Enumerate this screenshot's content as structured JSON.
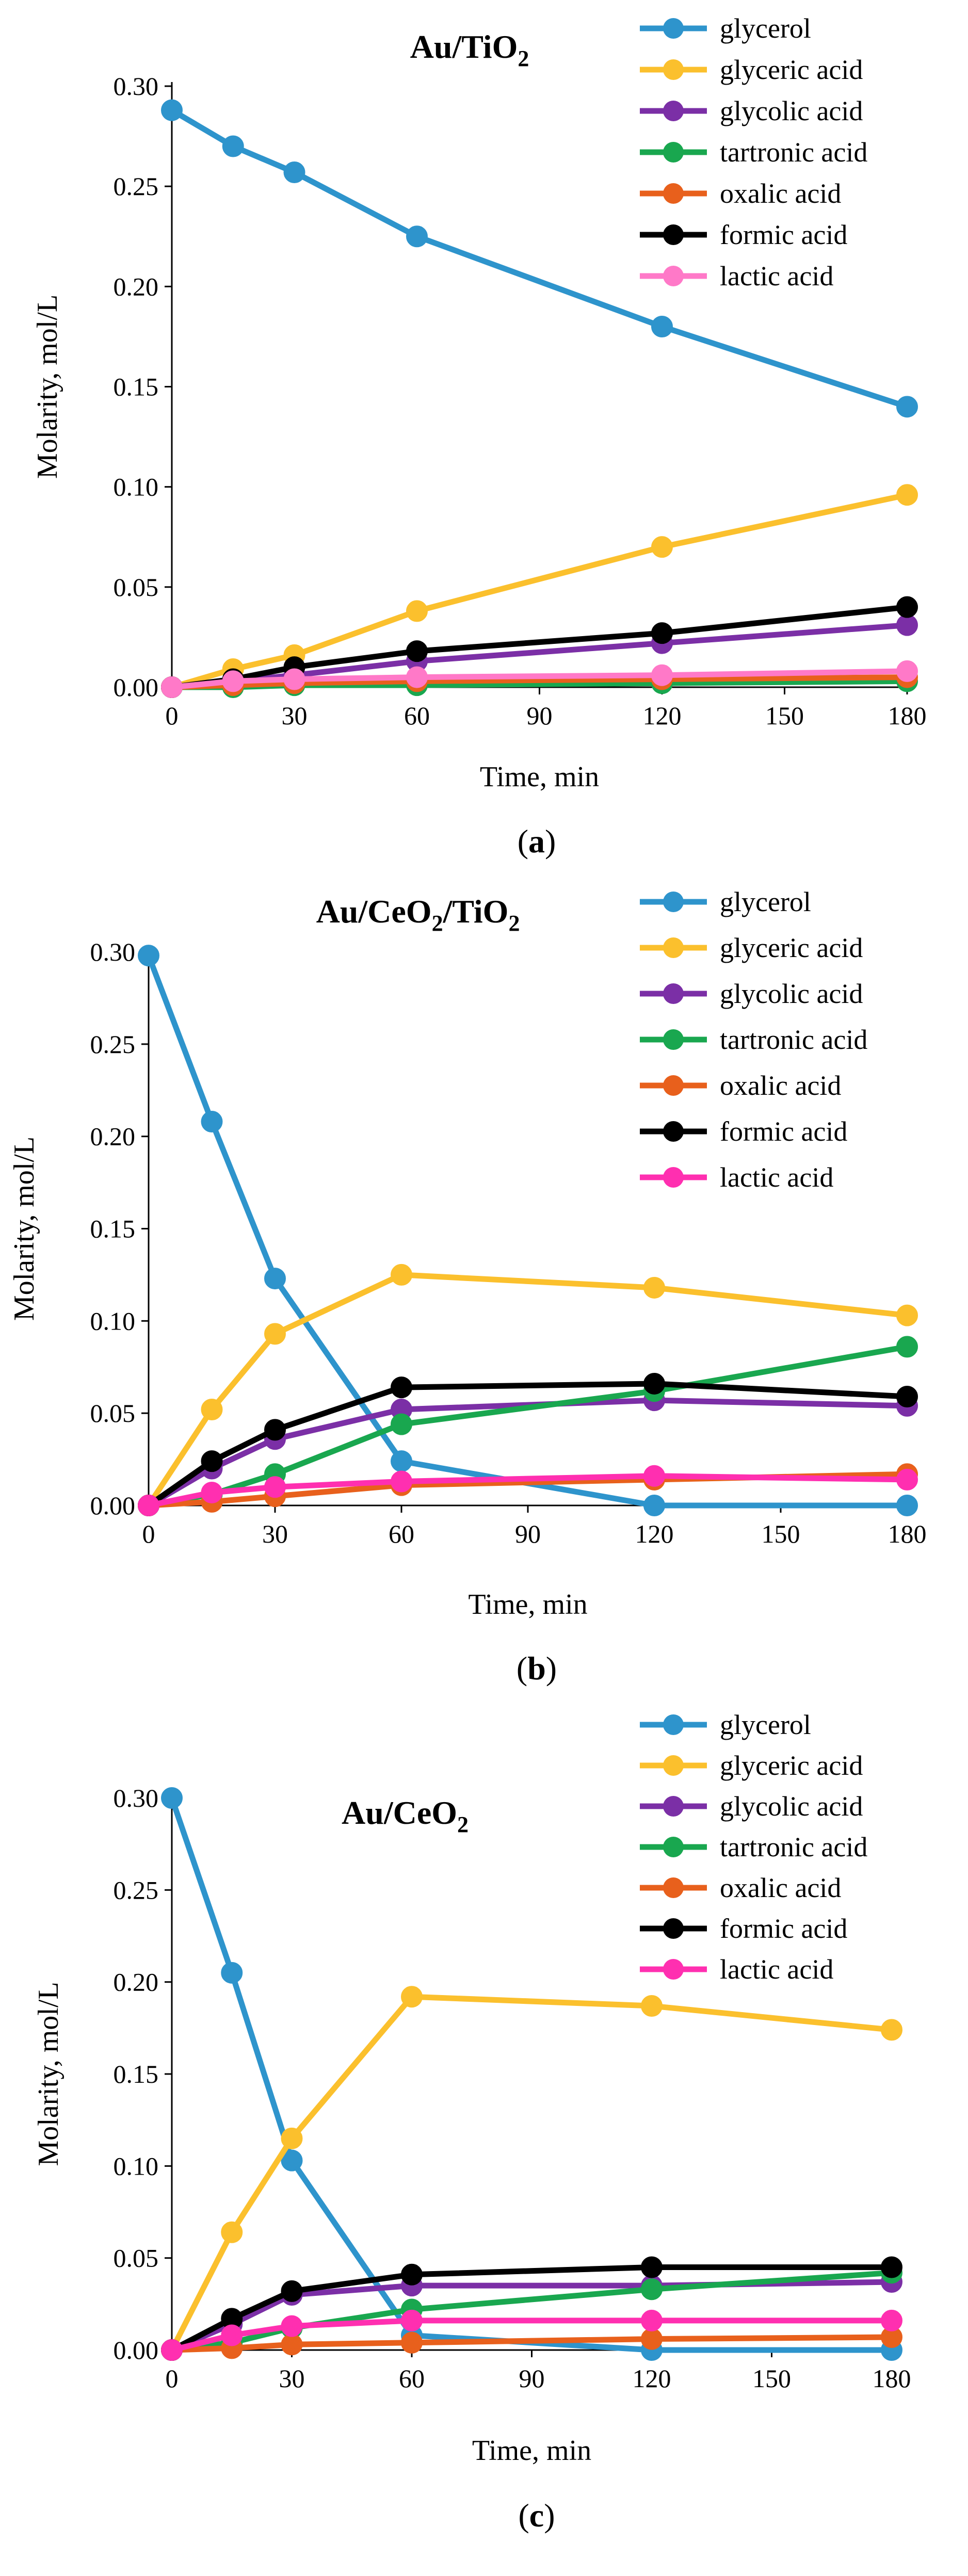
{
  "chart_data": [
    {
      "type": "line",
      "panel_label": "(a)",
      "title": "Au/TiO",
      "title_subscripts": [
        "2"
      ],
      "xlabel": "Time, min",
      "ylabel": "Molarity, mol/L",
      "xlim": [
        0,
        180
      ],
      "ylim": [
        0,
        0.3
      ],
      "xticks": [
        0,
        30,
        60,
        90,
        120,
        150,
        180
      ],
      "xtick_labels": [
        "0",
        "30",
        "60",
        "90",
        "120",
        "150",
        "180"
      ],
      "yticks": [
        0,
        0.05,
        0.1,
        0.15,
        0.2,
        0.25,
        0.3
      ],
      "ytick_labels": [
        "0.00",
        "0.05",
        "0.10",
        "0.15",
        "0.20",
        "0.25",
        "0.30"
      ],
      "grid": false,
      "legend_position": "top-right",
      "x": [
        0,
        15,
        30,
        60,
        120,
        180
      ],
      "series": [
        {
          "name": "glycerol",
          "color": "#2e94cc",
          "values": [
            0.288,
            0.27,
            0.257,
            0.225,
            0.18,
            0.14
          ]
        },
        {
          "name": "glyceric acid",
          "color": "#fbc02d",
          "values": [
            0.0,
            0.009,
            0.016,
            0.038,
            0.07,
            0.096
          ]
        },
        {
          "name": "glycolic acid",
          "color": "#7b2fa6",
          "values": [
            0.0,
            0.003,
            0.006,
            0.013,
            0.022,
            0.031
          ]
        },
        {
          "name": "tartronic acid",
          "color": "#19a74f",
          "values": [
            0.0,
            0.0,
            0.001,
            0.001,
            0.002,
            0.003
          ]
        },
        {
          "name": "oxalic acid",
          "color": "#e8601c",
          "values": [
            0.0,
            0.001,
            0.002,
            0.003,
            0.004,
            0.005
          ]
        },
        {
          "name": "formic acid",
          "color": "#000000",
          "values": [
            0.0,
            0.004,
            0.01,
            0.018,
            0.027,
            0.04
          ]
        },
        {
          "name": "lactic acid",
          "color": "#ff79c8",
          "values": [
            0.0,
            0.003,
            0.004,
            0.005,
            0.006,
            0.008
          ]
        }
      ]
    },
    {
      "type": "line",
      "panel_label": "(b)",
      "title": "Au/CeO",
      "title_mid": "/TiO",
      "title_subscripts": [
        "2",
        "2"
      ],
      "xlabel": "Time, min",
      "ylabel": "Molarity, mol/L",
      "xlim": [
        0,
        180
      ],
      "ylim": [
        0,
        0.3
      ],
      "xticks": [
        0,
        30,
        60,
        90,
        120,
        150,
        180
      ],
      "xtick_labels": [
        "0",
        "30",
        "60",
        "90",
        "120",
        "150",
        "180"
      ],
      "yticks": [
        0,
        0.05,
        0.1,
        0.15,
        0.2,
        0.25,
        0.3
      ],
      "ytick_labels": [
        "0.00",
        "0.05",
        "0.10",
        "0.15",
        "0.20",
        "0.25",
        "0.30"
      ],
      "grid": false,
      "legend_position": "top-right",
      "x": [
        0,
        15,
        30,
        60,
        120,
        180
      ],
      "series": [
        {
          "name": "glycerol",
          "color": "#2e94cc",
          "values": [
            0.298,
            0.208,
            0.123,
            0.024,
            0.0,
            0.0
          ]
        },
        {
          "name": "glyceric acid",
          "color": "#fbc02d",
          "values": [
            0.0,
            0.052,
            0.093,
            0.125,
            0.118,
            0.103
          ]
        },
        {
          "name": "glycolic acid",
          "color": "#7b2fa6",
          "values": [
            0.0,
            0.02,
            0.036,
            0.052,
            0.057,
            0.054
          ]
        },
        {
          "name": "tartronic acid",
          "color": "#19a74f",
          "values": [
            0.0,
            0.006,
            0.017,
            0.044,
            0.062,
            0.086
          ]
        },
        {
          "name": "oxalic acid",
          "color": "#e8601c",
          "values": [
            0.0,
            0.002,
            0.005,
            0.011,
            0.014,
            0.017
          ]
        },
        {
          "name": "formic acid",
          "color": "#000000",
          "values": [
            0.0,
            0.024,
            0.041,
            0.064,
            0.066,
            0.059
          ]
        },
        {
          "name": "lactic acid",
          "color": "#ff2fb0",
          "values": [
            0.0,
            0.007,
            0.01,
            0.013,
            0.016,
            0.014
          ]
        }
      ]
    },
    {
      "type": "line",
      "panel_label": "(c)",
      "title": "Au/CeO",
      "title_subscripts": [
        "2"
      ],
      "xlabel": "Time, min",
      "ylabel": "Molarity, mol/L",
      "xlim": [
        0,
        180
      ],
      "ylim": [
        0,
        0.3
      ],
      "xticks": [
        0,
        30,
        60,
        90,
        120,
        150,
        180
      ],
      "xtick_labels": [
        "0",
        "30",
        "60",
        "90",
        "120",
        "150",
        "180"
      ],
      "yticks": [
        0,
        0.05,
        0.1,
        0.15,
        0.2,
        0.25,
        0.3
      ],
      "ytick_labels": [
        "0.00",
        "0.05",
        "0.10",
        "0.15",
        "0.20",
        "0.25",
        "0.30"
      ],
      "grid": false,
      "legend_position": "top-right",
      "x": [
        0,
        15,
        30,
        60,
        120,
        180
      ],
      "series": [
        {
          "name": "glycerol",
          "color": "#2e94cc",
          "values": [
            0.3,
            0.205,
            0.103,
            0.008,
            0.0,
            0.0
          ]
        },
        {
          "name": "glyceric acid",
          "color": "#fbc02d",
          "values": [
            0.0,
            0.064,
            0.115,
            0.192,
            0.187,
            0.174
          ]
        },
        {
          "name": "glycolic acid",
          "color": "#7b2fa6",
          "values": [
            0.0,
            0.014,
            0.03,
            0.035,
            0.035,
            0.037
          ]
        },
        {
          "name": "tartronic acid",
          "color": "#19a74f",
          "values": [
            0.0,
            0.004,
            0.012,
            0.022,
            0.033,
            0.042
          ]
        },
        {
          "name": "oxalic acid",
          "color": "#e8601c",
          "values": [
            0.0,
            0.001,
            0.003,
            0.004,
            0.006,
            0.007
          ]
        },
        {
          "name": "formic acid",
          "color": "#000000",
          "values": [
            0.0,
            0.017,
            0.032,
            0.041,
            0.045,
            0.045
          ]
        },
        {
          "name": "lactic acid",
          "color": "#ff2fb0",
          "values": [
            0.0,
            0.008,
            0.013,
            0.016,
            0.016,
            0.016
          ]
        }
      ]
    }
  ]
}
